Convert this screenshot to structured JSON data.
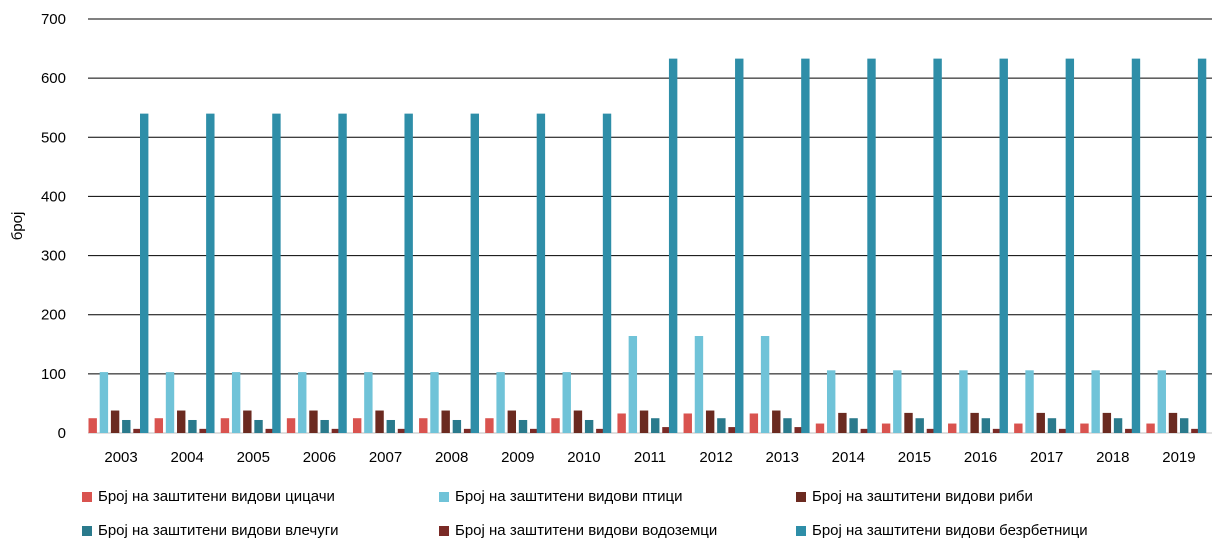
{
  "chart_data": {
    "type": "bar",
    "title": "",
    "xlabel": "",
    "ylabel": "број",
    "ylim": [
      0,
      700
    ],
    "yticks": [
      0,
      100,
      200,
      300,
      400,
      500,
      600,
      700
    ],
    "grid": true,
    "legend_position": "bottom",
    "categories": [
      "2003",
      "2004",
      "2005",
      "2006",
      "2007",
      "2008",
      "2009",
      "2010",
      "2011",
      "2012",
      "2013",
      "2014",
      "2015",
      "2016",
      "2017",
      "2018",
      "2019"
    ],
    "series": [
      {
        "name": "Број на заштитени видови цицачи",
        "color": "#d9534f",
        "values": [
          25,
          25,
          25,
          25,
          25,
          25,
          25,
          25,
          33,
          33,
          33,
          16,
          16,
          16,
          16,
          16,
          16
        ]
      },
      {
        "name": "Број на заштитени видови птици",
        "color": "#70c3d8",
        "values": [
          103,
          103,
          103,
          103,
          103,
          103,
          103,
          103,
          164,
          164,
          164,
          106,
          106,
          106,
          106,
          106,
          106
        ]
      },
      {
        "name": "Број на заштитени видови риби",
        "color": "#6b2a20",
        "values": [
          38,
          38,
          38,
          38,
          38,
          38,
          38,
          38,
          38,
          38,
          38,
          34,
          34,
          34,
          34,
          34,
          34
        ]
      },
      {
        "name": "Број на заштитени видови влечуги",
        "color": "#2a7a8c",
        "values": [
          22,
          22,
          22,
          22,
          22,
          22,
          22,
          22,
          25,
          25,
          25,
          25,
          25,
          25,
          25,
          25,
          25
        ]
      },
      {
        "name": "Број на заштитени видови водоземци",
        "color": "#7a2a26",
        "values": [
          7,
          7,
          7,
          7,
          7,
          7,
          7,
          7,
          10,
          10,
          10,
          7,
          7,
          7,
          7,
          7,
          7
        ]
      },
      {
        "name": "Број на заштитени видови безрбетници",
        "color": "#2e8ea8",
        "values": [
          540,
          540,
          540,
          540,
          540,
          540,
          540,
          540,
          633,
          633,
          633,
          633,
          633,
          633,
          633,
          633,
          633
        ]
      }
    ]
  }
}
